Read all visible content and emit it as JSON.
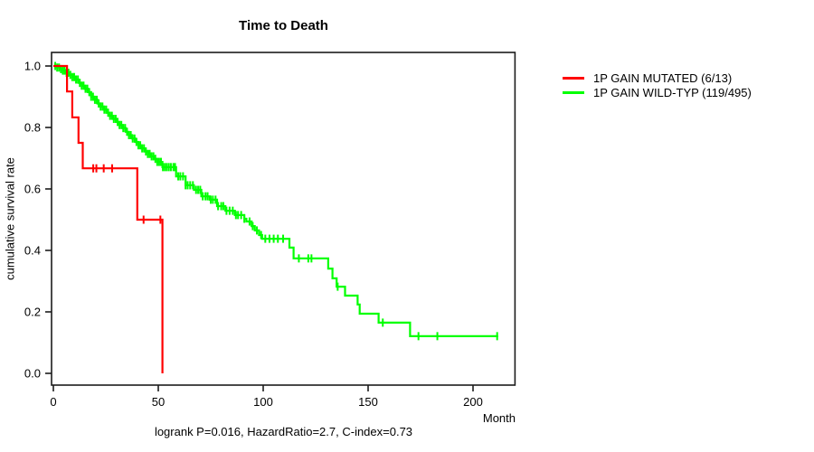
{
  "figure": {
    "title": "Time to Death",
    "caption": "logrank P=0.016, HazardRatio=2.7, C-index=0.73"
  },
  "axes": {
    "x_label": "Month",
    "y_label": "cumulative survival rate",
    "x_ticks": [
      {
        "value": 0,
        "label": "0"
      },
      {
        "value": 50,
        "label": "50"
      },
      {
        "value": 100,
        "label": "100"
      },
      {
        "value": 150,
        "label": "150"
      },
      {
        "value": 200,
        "label": "200"
      }
    ],
    "y_ticks": [
      {
        "value": 1.0,
        "label": "1.0"
      },
      {
        "value": 0.8,
        "label": "0.8"
      },
      {
        "value": 0.6,
        "label": "0.6"
      },
      {
        "value": 0.4,
        "label": "0.4"
      },
      {
        "value": 0.2,
        "label": "0.2"
      },
      {
        "value": 0.0,
        "label": "0.0"
      }
    ]
  },
  "legend": {
    "items": [
      {
        "label": "1P GAIN MUTATED (6/13)",
        "color": "#ff0000"
      },
      {
        "label": "1P GAIN WILD-TYP (119/495)",
        "color": "#00ff00"
      }
    ]
  },
  "chart_data": {
    "type": "line",
    "subtype": "kaplan_meier_step",
    "title": "Time to Death",
    "xlabel": "Month",
    "ylabel": "cumulative survival rate",
    "xlim": [
      0,
      220
    ],
    "ylim": [
      0,
      1
    ],
    "grid": false,
    "legend_position": "top-right-outside",
    "annotation": "logrank P=0.016, HazardRatio=2.7, C-index=0.73",
    "series": [
      {
        "name": "1P GAIN MUTATED (6/13)",
        "color": "#ff0000",
        "steps": [
          [
            0,
            1.0
          ],
          [
            6.5,
            0.917
          ],
          [
            9,
            0.833
          ],
          [
            12,
            0.75
          ],
          [
            14,
            0.667
          ],
          [
            40,
            0.5
          ],
          [
            52,
            0.0
          ]
        ],
        "end_time": 52,
        "censor_times": [
          19,
          20.5,
          24,
          28,
          43,
          51
        ]
      },
      {
        "name": "1P GAIN WILD-TYP (119/495)",
        "color": "#00ff00",
        "steps": [
          [
            0,
            1.0
          ],
          [
            1.5,
            0.995
          ],
          [
            3,
            0.99
          ],
          [
            4.5,
            0.985
          ],
          [
            6,
            0.978
          ],
          [
            7.5,
            0.971
          ],
          [
            9,
            0.964
          ],
          [
            10.5,
            0.956
          ],
          [
            12,
            0.945
          ],
          [
            13.5,
            0.936
          ],
          [
            15,
            0.926
          ],
          [
            16.5,
            0.915
          ],
          [
            18,
            0.9
          ],
          [
            19.5,
            0.89
          ],
          [
            21,
            0.878
          ],
          [
            22.5,
            0.868
          ],
          [
            24,
            0.858
          ],
          [
            25.5,
            0.848
          ],
          [
            27,
            0.838
          ],
          [
            28.5,
            0.828
          ],
          [
            30,
            0.818
          ],
          [
            31.5,
            0.808
          ],
          [
            33,
            0.798
          ],
          [
            34.5,
            0.786
          ],
          [
            36,
            0.775
          ],
          [
            37.5,
            0.764
          ],
          [
            39,
            0.753
          ],
          [
            40.5,
            0.742
          ],
          [
            42,
            0.732
          ],
          [
            43.5,
            0.722
          ],
          [
            45,
            0.714
          ],
          [
            46.5,
            0.706
          ],
          [
            48,
            0.698
          ],
          [
            49.5,
            0.688
          ],
          [
            52,
            0.671
          ],
          [
            58.5,
            0.641
          ],
          [
            63,
            0.612
          ],
          [
            67,
            0.597
          ],
          [
            70.5,
            0.576
          ],
          [
            74.5,
            0.565
          ],
          [
            78,
            0.544
          ],
          [
            82,
            0.529
          ],
          [
            86.5,
            0.515
          ],
          [
            91,
            0.503
          ],
          [
            92,
            0.494
          ],
          [
            94.5,
            0.479
          ],
          [
            96,
            0.465
          ],
          [
            98,
            0.45
          ],
          [
            99.5,
            0.438
          ],
          [
            112.5,
            0.409
          ],
          [
            114.5,
            0.374
          ],
          [
            131,
            0.341
          ],
          [
            133,
            0.309
          ],
          [
            135,
            0.282
          ],
          [
            139,
            0.253
          ],
          [
            145,
            0.224
          ],
          [
            146,
            0.194
          ],
          [
            155,
            0.165
          ],
          [
            170,
            0.121
          ]
        ],
        "end_time": 212,
        "censor_times": [
          0.9,
          1.8,
          2.7,
          3.6,
          4.5,
          5.4,
          6.3,
          7.2,
          8.1,
          9,
          9.9,
          10.8,
          11.7,
          12.6,
          13.5,
          14.4,
          15.3,
          16.2,
          17.1,
          18,
          18.9,
          19.8,
          20.7,
          21.6,
          22.5,
          23.4,
          24.3,
          25.2,
          26.1,
          27,
          27.9,
          28.8,
          29.7,
          30.6,
          31.5,
          32.4,
          33.3,
          34.2,
          35.1,
          36,
          36.9,
          37.8,
          38.7,
          39.6,
          40.5,
          41.4,
          42.3,
          43.2,
          44.1,
          45,
          45.9,
          46.8,
          47.7,
          48.6,
          49.5,
          50.4,
          51.3,
          52.2,
          53.1,
          54,
          55,
          56,
          57.2,
          58,
          59.5,
          60.5,
          61.8,
          63,
          64,
          65.2,
          66.5,
          68,
          69,
          70,
          71.2,
          72.5,
          73.5,
          75,
          76,
          77.3,
          78.5,
          80,
          81,
          82.5,
          84,
          85.5,
          87,
          88,
          89.5,
          91,
          93.5,
          95,
          97,
          99,
          101,
          103,
          105,
          107,
          109.5,
          117,
          121.5,
          123,
          135.5,
          157,
          174,
          183,
          211.5
        ]
      }
    ]
  }
}
